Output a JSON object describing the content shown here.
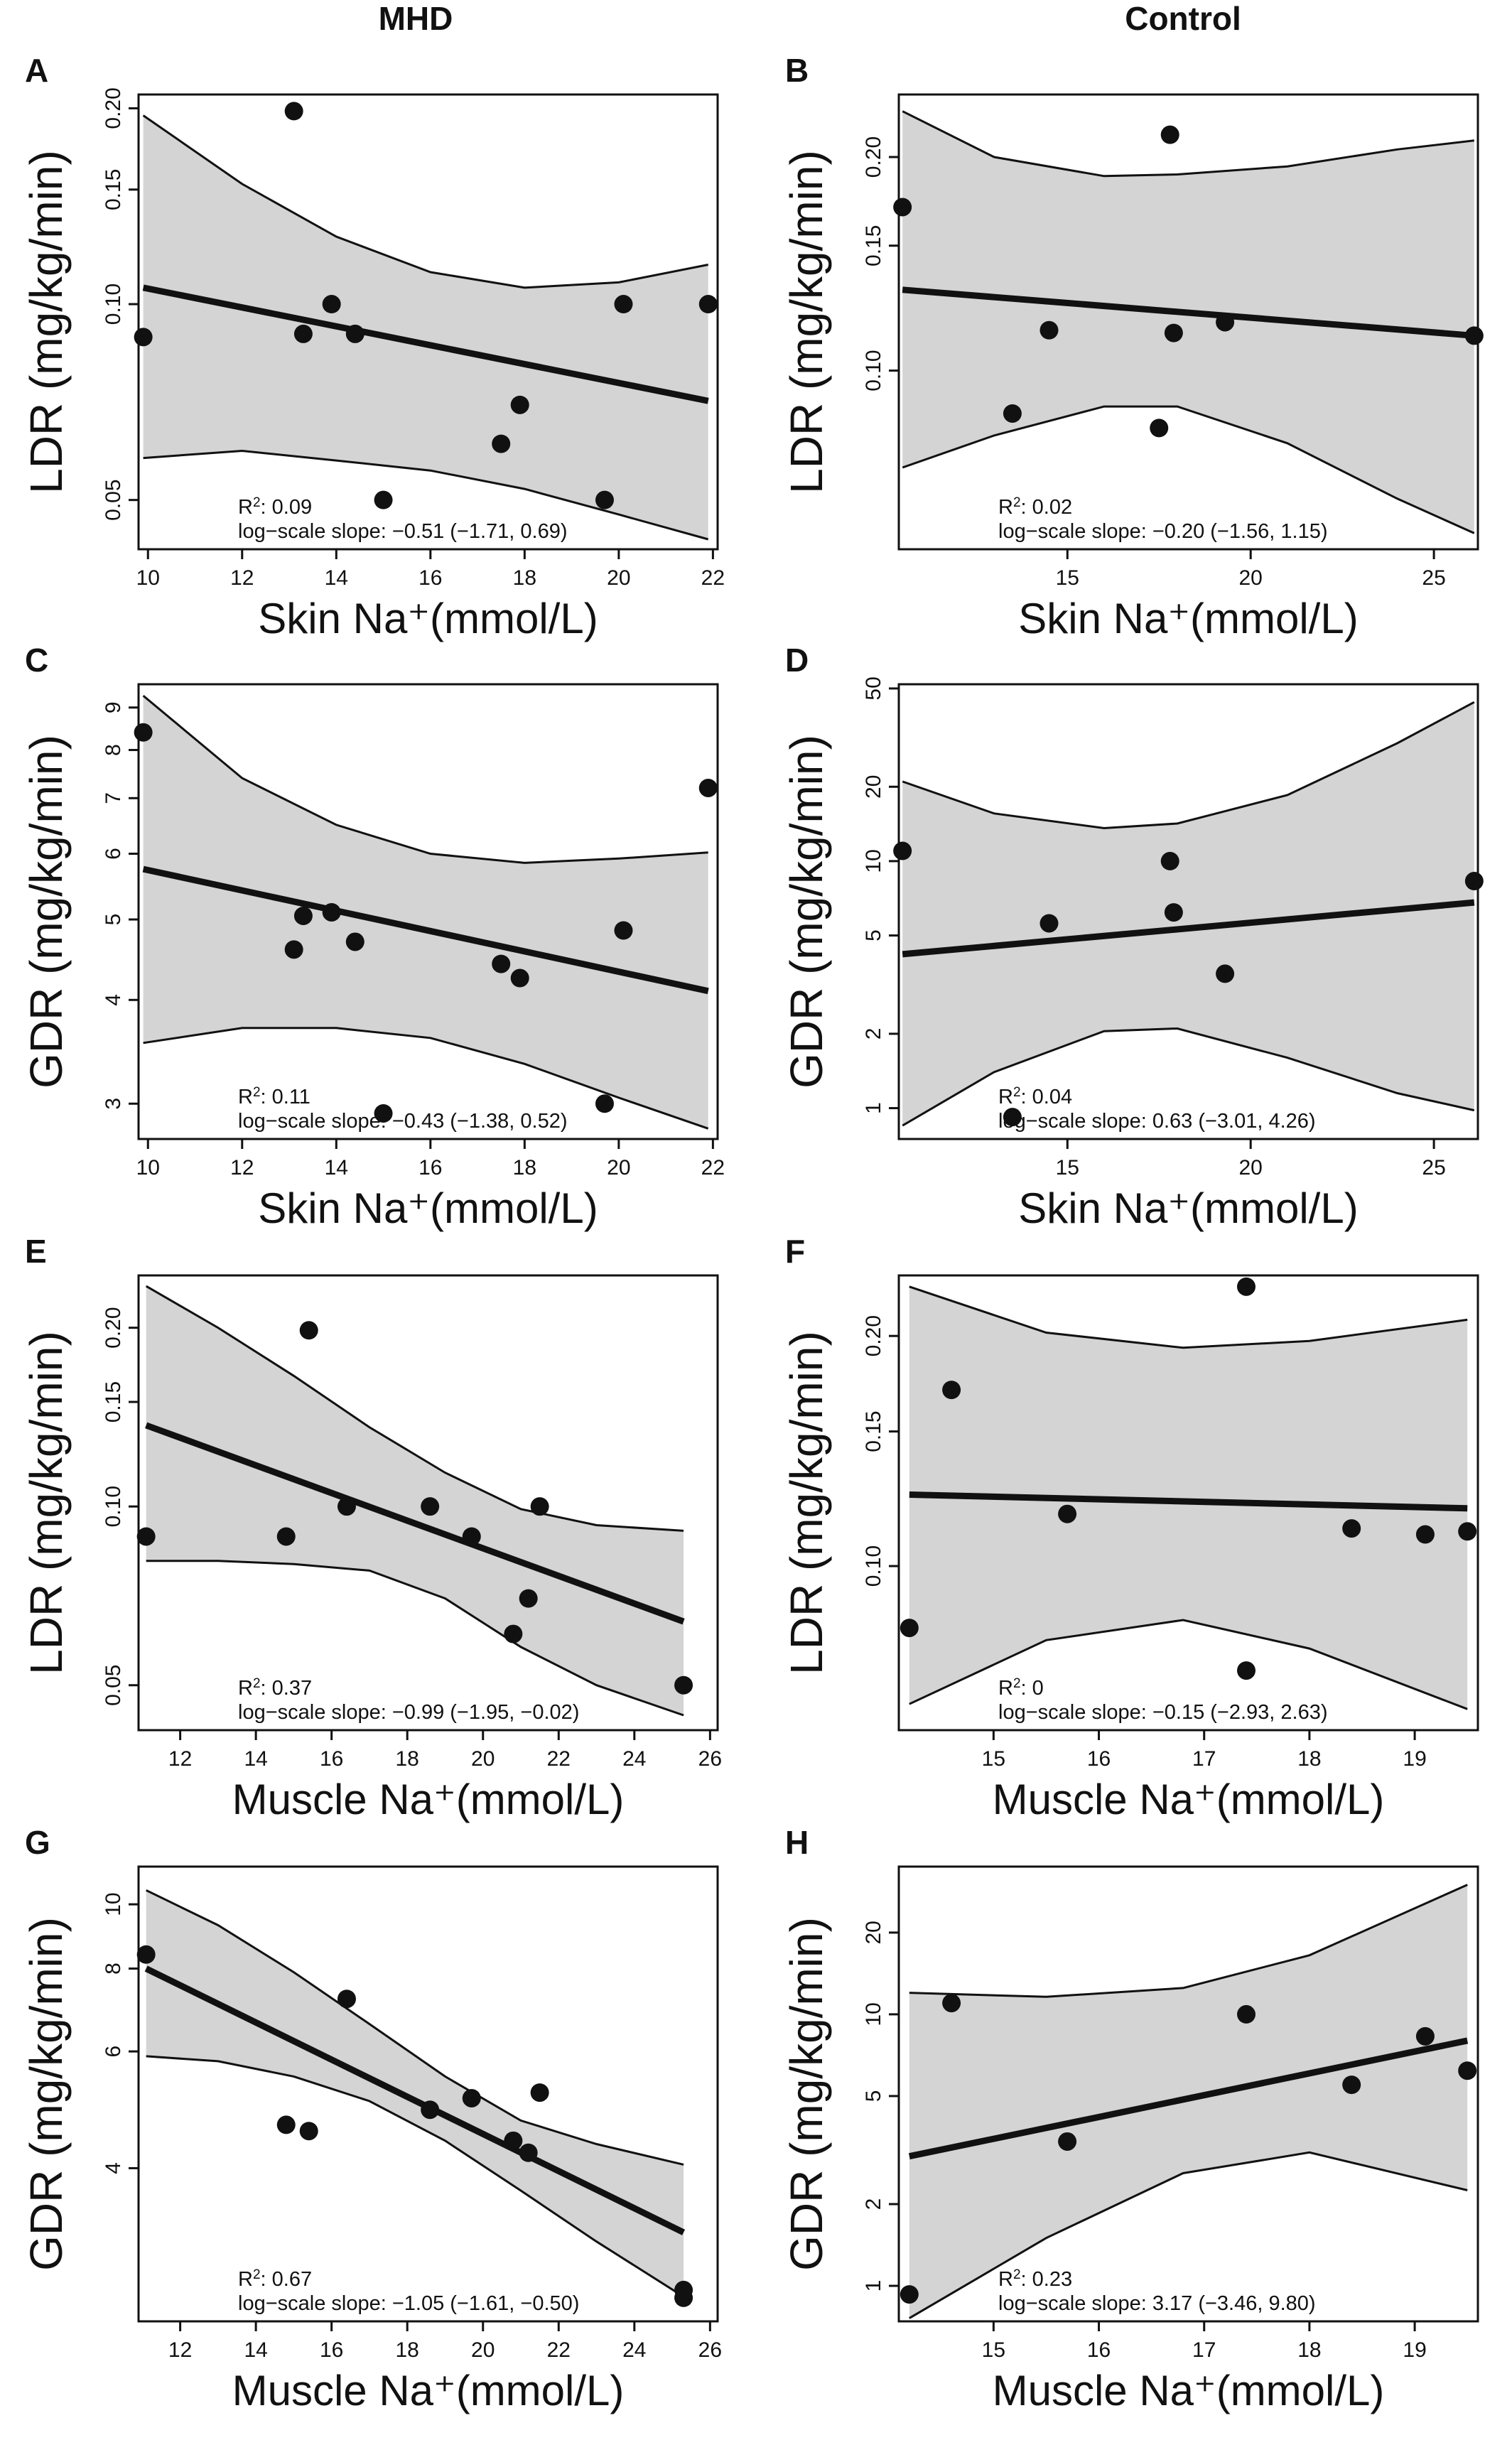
{
  "column_titles": [
    "MHD",
    "Control"
  ],
  "chart_data": [
    {
      "panel": "A",
      "type": "scatter",
      "xlabel": "Skin Na⁺(mmol/L)",
      "ylabel": "LDR (mg/kg/min)",
      "yscale": "log",
      "xlim": [
        9.8,
        22.1
      ],
      "ylim": [
        0.042,
        0.21
      ],
      "xticks": [
        10,
        12,
        14,
        16,
        18,
        20,
        22
      ],
      "yticks": [
        0.05,
        0.1,
        0.15,
        0.2
      ],
      "ytick_labels": [
        "0.05",
        "0.10",
        "0.15",
        "0.20"
      ],
      "points": [
        [
          9.9,
          0.089
        ],
        [
          13.1,
          0.198
        ],
        [
          13.3,
          0.09
        ],
        [
          13.9,
          0.1
        ],
        [
          14.4,
          0.09
        ],
        [
          15.0,
          0.05
        ],
        [
          17.5,
          0.061
        ],
        [
          17.9,
          0.07
        ],
        [
          19.7,
          0.05
        ],
        [
          20.1,
          0.1
        ],
        [
          21.9,
          0.1
        ]
      ],
      "fit": [
        [
          9.9,
          0.106
        ],
        [
          21.9,
          0.071
        ]
      ],
      "ci_upper": [
        [
          9.9,
          0.195
        ],
        [
          12,
          0.153
        ],
        [
          14,
          0.127
        ],
        [
          16,
          0.112
        ],
        [
          18,
          0.106
        ],
        [
          20,
          0.108
        ],
        [
          21.9,
          0.115
        ]
      ],
      "ci_lower": [
        [
          9.9,
          0.058
        ],
        [
          12,
          0.0595
        ],
        [
          14,
          0.0575
        ],
        [
          16,
          0.0555
        ],
        [
          18,
          0.052
        ],
        [
          20,
          0.0475
        ],
        [
          21.9,
          0.0435
        ]
      ],
      "r2_label": "R",
      "r2_sup": "2",
      "r2_value": ": 0.09",
      "slope_text": "log−scale slope: −0.51 (−1.71, 0.69)"
    },
    {
      "panel": "B",
      "type": "scatter",
      "xlabel": "Skin Na⁺(mmol/L)",
      "ylabel": "LDR (mg/kg/min)",
      "yscale": "log",
      "xlim": [
        10.4,
        26.2
      ],
      "ylim": [
        0.056,
        0.245
      ],
      "xticks": [
        15,
        20,
        25
      ],
      "yticks": [
        0.1,
        0.15,
        0.2
      ],
      "ytick_labels": [
        "0.10",
        "0.15",
        "0.20"
      ],
      "points": [
        [
          10.5,
          0.17
        ],
        [
          13.5,
          0.087
        ],
        [
          14.5,
          0.114
        ],
        [
          17.5,
          0.083
        ],
        [
          17.8,
          0.215
        ],
        [
          17.9,
          0.113
        ],
        [
          19.3,
          0.117
        ],
        [
          26.1,
          0.112
        ]
      ],
      "fit": [
        [
          10.5,
          0.13
        ],
        [
          26.1,
          0.112
        ]
      ],
      "ci_upper": [
        [
          10.5,
          0.232
        ],
        [
          13,
          0.2
        ],
        [
          16,
          0.188
        ],
        [
          18,
          0.189
        ],
        [
          21,
          0.194
        ],
        [
          24,
          0.205
        ],
        [
          26.1,
          0.211
        ]
      ],
      "ci_lower": [
        [
          10.5,
          0.073
        ],
        [
          13,
          0.081
        ],
        [
          16,
          0.089
        ],
        [
          18,
          0.089
        ],
        [
          21,
          0.079
        ],
        [
          24,
          0.066
        ],
        [
          26.1,
          0.059
        ]
      ],
      "r2_label": "R",
      "r2_sup": "2",
      "r2_value": ": 0.02",
      "slope_text": "log−scale slope: −0.20 (−1.56, 1.15)"
    },
    {
      "panel": "C",
      "type": "scatter",
      "xlabel": "Skin Na⁺(mmol/L)",
      "ylabel": "GDR (mg/kg/min)",
      "yscale": "log",
      "xlim": [
        9.8,
        22.1
      ],
      "ylim": [
        2.72,
        9.6
      ],
      "xticks": [
        10,
        12,
        14,
        16,
        18,
        20,
        22
      ],
      "yticks": [
        3,
        4,
        5,
        6,
        7,
        8,
        9
      ],
      "ytick_labels": [
        "3",
        "4",
        "5",
        "6",
        "7",
        "8",
        "9"
      ],
      "points": [
        [
          9.9,
          8.4
        ],
        [
          13.1,
          4.6
        ],
        [
          13.3,
          5.05
        ],
        [
          13.9,
          5.1
        ],
        [
          14.4,
          4.7
        ],
        [
          15.0,
          2.92
        ],
        [
          17.5,
          4.42
        ],
        [
          17.9,
          4.25
        ],
        [
          19.7,
          3.0
        ],
        [
          20.1,
          4.85
        ],
        [
          21.9,
          7.2
        ]
      ],
      "fit": [
        [
          9.9,
          5.75
        ],
        [
          21.9,
          4.1
        ]
      ],
      "ci_upper": [
        [
          9.9,
          9.3
        ],
        [
          12,
          7.4
        ],
        [
          14,
          6.5
        ],
        [
          16,
          6.0
        ],
        [
          18,
          5.85
        ],
        [
          20,
          5.92
        ],
        [
          21.9,
          6.02
        ]
      ],
      "ci_lower": [
        [
          9.9,
          3.55
        ],
        [
          12,
          3.7
        ],
        [
          14,
          3.7
        ],
        [
          16,
          3.6
        ],
        [
          18,
          3.35
        ],
        [
          20,
          3.05
        ],
        [
          21.9,
          2.8
        ]
      ],
      "r2_label": "R",
      "r2_sup": "2",
      "r2_value": ": 0.11",
      "slope_text": "log−scale slope: −0.43 (−1.38, 0.52)"
    },
    {
      "panel": "D",
      "type": "scatter",
      "xlabel": "Skin Na⁺(mmol/L)",
      "ylabel": "GDR (mg/kg/min)",
      "yscale": "log",
      "xlim": [
        10.4,
        26.2
      ],
      "ylim": [
        0.75,
        52
      ],
      "xticks": [
        15,
        20,
        25
      ],
      "yticks": [
        1,
        2,
        5,
        10,
        20,
        50
      ],
      "ytick_labels": [
        "1",
        "2",
        "5",
        "10",
        "20",
        "50"
      ],
      "points": [
        [
          10.5,
          11.0
        ],
        [
          13.5,
          0.92
        ],
        [
          14.5,
          5.6
        ],
        [
          17.8,
          10.0
        ],
        [
          17.9,
          6.2
        ],
        [
          19.3,
          3.5
        ],
        [
          26.1,
          8.3
        ]
      ],
      "fit": [
        [
          10.5,
          4.2
        ],
        [
          26.1,
          6.8
        ]
      ],
      "ci_upper": [
        [
          10.5,
          21.0
        ],
        [
          13,
          15.6
        ],
        [
          16,
          13.6
        ],
        [
          18,
          14.2
        ],
        [
          21,
          18.5
        ],
        [
          24,
          30
        ],
        [
          26.1,
          44
        ]
      ],
      "ci_lower": [
        [
          10.5,
          0.85
        ],
        [
          13,
          1.4
        ],
        [
          16,
          2.05
        ],
        [
          18,
          2.1
        ],
        [
          21,
          1.6
        ],
        [
          24,
          1.15
        ],
        [
          26.1,
          0.98
        ]
      ],
      "r2_label": "R",
      "r2_sup": "2",
      "r2_value": ": 0.04",
      "slope_text": "log−scale slope: 0.63 (−3.01, 4.26)"
    },
    {
      "panel": "E",
      "type": "scatter",
      "xlabel": "Muscle Na⁺(mmol/L)",
      "ylabel": "LDR (mg/kg/min)",
      "yscale": "log",
      "xlim": [
        10.9,
        26.2
      ],
      "ylim": [
        0.042,
        0.245
      ],
      "xticks": [
        12,
        14,
        16,
        18,
        20,
        22,
        24,
        26
      ],
      "yticks": [
        0.05,
        0.1,
        0.15,
        0.2
      ],
      "ytick_labels": [
        "0.05",
        "0.10",
        "0.15",
        "0.20"
      ],
      "points": [
        [
          11.1,
          0.089
        ],
        [
          14.8,
          0.089
        ],
        [
          15.4,
          0.198
        ],
        [
          16.4,
          0.1
        ],
        [
          18.6,
          0.1
        ],
        [
          19.7,
          0.089
        ],
        [
          20.8,
          0.061
        ],
        [
          21.2,
          0.07
        ],
        [
          21.5,
          0.1
        ],
        [
          25.3,
          0.05
        ]
      ],
      "fit": [
        [
          11.1,
          0.137
        ],
        [
          25.3,
          0.064
        ]
      ],
      "ci_upper": [
        [
          11.1,
          0.235
        ],
        [
          13,
          0.2
        ],
        [
          15,
          0.166
        ],
        [
          17,
          0.136
        ],
        [
          19,
          0.114
        ],
        [
          21,
          0.099
        ],
        [
          23,
          0.093
        ],
        [
          25.3,
          0.091
        ]
      ],
      "ci_lower": [
        [
          11.1,
          0.081
        ],
        [
          13,
          0.081
        ],
        [
          15,
          0.08
        ],
        [
          17,
          0.078
        ],
        [
          19,
          0.07
        ],
        [
          21,
          0.058
        ],
        [
          23,
          0.05
        ],
        [
          25.3,
          0.0445
        ]
      ],
      "r2_label": "R",
      "r2_sup": "2",
      "r2_value": ": 0.37",
      "slope_text": "log−scale slope: −0.99 (−1.95, −0.02)"
    },
    {
      "panel": "F",
      "type": "scatter",
      "xlabel": "Muscle Na⁺(mmol/L)",
      "ylabel": "LDR (mg/kg/min)",
      "yscale": "log",
      "xlim": [
        14.1,
        19.6
      ],
      "ylim": [
        0.061,
        0.24
      ],
      "xticks": [
        15,
        16,
        17,
        18,
        19
      ],
      "yticks": [
        0.1,
        0.15,
        0.2
      ],
      "ytick_labels": [
        "0.10",
        "0.15",
        "0.20"
      ],
      "points": [
        [
          14.2,
          0.083
        ],
        [
          14.6,
          0.17
        ],
        [
          15.7,
          0.117
        ],
        [
          17.4,
          0.232
        ],
        [
          17.4,
          0.073
        ],
        [
          18.4,
          0.112
        ],
        [
          19.1,
          0.11
        ],
        [
          19.5,
          0.111
        ]
      ],
      "fit": [
        [
          14.2,
          0.124
        ],
        [
          19.5,
          0.119
        ]
      ],
      "ci_upper": [
        [
          14.2,
          0.232
        ],
        [
          15.5,
          0.202
        ],
        [
          16.8,
          0.193
        ],
        [
          18,
          0.197
        ],
        [
          19.5,
          0.21
        ]
      ],
      "ci_lower": [
        [
          14.2,
          0.066
        ],
        [
          15.5,
          0.08
        ],
        [
          16.8,
          0.085
        ],
        [
          18,
          0.078
        ],
        [
          19.5,
          0.065
        ]
      ],
      "r2_label": "R",
      "r2_sup": "2",
      "r2_value": ": 0",
      "slope_text": "log−scale slope: −0.15 (−2.93, 2.63)"
    },
    {
      "panel": "G",
      "type": "scatter",
      "xlabel": "Muscle Na⁺(mmol/L)",
      "ylabel": "GDR (mg/kg/min)",
      "yscale": "log",
      "xlim": [
        10.9,
        26.2
      ],
      "ylim": [
        2.35,
        11.4
      ],
      "xticks": [
        12,
        14,
        16,
        18,
        20,
        22,
        24,
        26
      ],
      "yticks": [
        4,
        6,
        8,
        10
      ],
      "ytick_labels": [
        "4",
        "6",
        "8",
        "10"
      ],
      "points": [
        [
          11.1,
          8.4
        ],
        [
          14.8,
          4.65
        ],
        [
          15.4,
          4.55
        ],
        [
          16.4,
          7.2
        ],
        [
          18.6,
          4.9
        ],
        [
          19.7,
          5.1
        ],
        [
          20.8,
          4.4
        ],
        [
          21.2,
          4.22
        ],
        [
          21.5,
          5.2
        ],
        [
          25.3,
          2.55
        ],
        [
          25.3,
          2.62
        ]
      ],
      "fit": [
        [
          11.1,
          8.0
        ],
        [
          25.3,
          3.2
        ]
      ],
      "ci_upper": [
        [
          11.1,
          10.5
        ],
        [
          13,
          9.3
        ],
        [
          15,
          7.9
        ],
        [
          17,
          6.6
        ],
        [
          19,
          5.5
        ],
        [
          21,
          4.72
        ],
        [
          23,
          4.35
        ],
        [
          25.3,
          4.05
        ]
      ],
      "ci_lower": [
        [
          11.1,
          5.9
        ],
        [
          13,
          5.8
        ],
        [
          15,
          5.5
        ],
        [
          17,
          5.05
        ],
        [
          19,
          4.4
        ],
        [
          21,
          3.7
        ],
        [
          23,
          3.1
        ],
        [
          25.3,
          2.56
        ]
      ],
      "r2_label": "R",
      "r2_sup": "2",
      "r2_value": ": 0.67",
      "slope_text": "log−scale slope: −1.05 (−1.61, −0.50)"
    },
    {
      "panel": "H",
      "type": "scatter",
      "xlabel": "Muscle Na⁺(mmol/L)",
      "ylabel": "GDR (mg/kg/min)",
      "yscale": "log",
      "xlim": [
        14.1,
        19.6
      ],
      "ylim": [
        0.74,
        35
      ],
      "xticks": [
        15,
        16,
        17,
        18,
        19
      ],
      "yticks": [
        1,
        2,
        5,
        10,
        20
      ],
      "ytick_labels": [
        "1",
        "2",
        "5",
        "10",
        "20"
      ],
      "points": [
        [
          14.2,
          0.93
        ],
        [
          14.6,
          11.0
        ],
        [
          15.7,
          3.4
        ],
        [
          17.4,
          10.0
        ],
        [
          18.4,
          5.5
        ],
        [
          19.1,
          8.3
        ],
        [
          19.5,
          6.2
        ]
      ],
      "fit": [
        [
          14.2,
          3.0
        ],
        [
          19.5,
          8.0
        ]
      ],
      "ci_upper": [
        [
          14.2,
          12.0
        ],
        [
          15.5,
          11.6
        ],
        [
          16.8,
          12.5
        ],
        [
          18,
          16.5
        ],
        [
          19.5,
          30
        ]
      ],
      "ci_lower": [
        [
          14.2,
          0.76
        ],
        [
          15.5,
          1.5
        ],
        [
          16.8,
          2.6
        ],
        [
          18,
          3.1
        ],
        [
          19.5,
          2.25
        ]
      ],
      "r2_label": "R",
      "r2_sup": "2",
      "r2_value": ": 0.23",
      "slope_text": "log−scale slope: 3.17 (−3.46, 9.80)"
    }
  ]
}
